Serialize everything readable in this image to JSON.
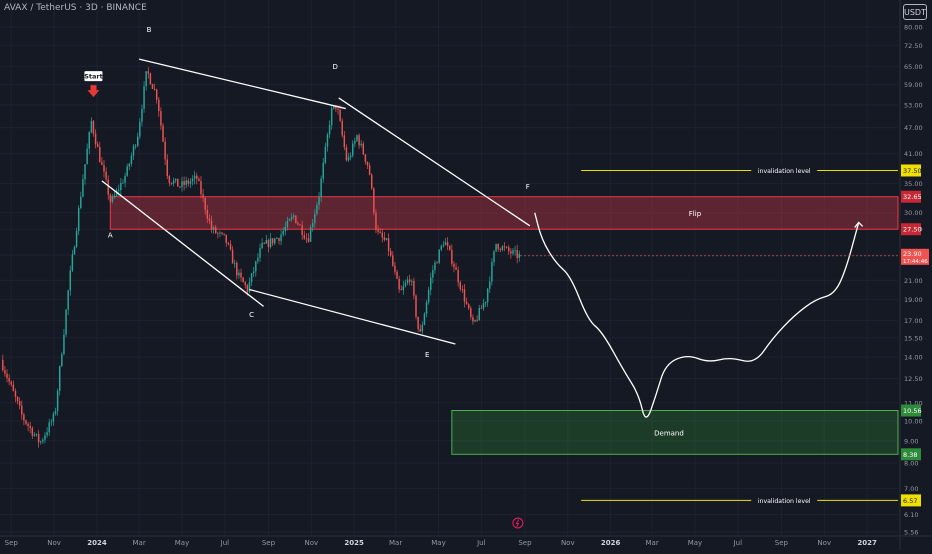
{
  "header": {
    "title": "AVAX / TetherUS · 3D · BINANCE",
    "currency": "USDT"
  },
  "colors": {
    "background": "#151924",
    "up": "#26a69a",
    "down": "#ef5350",
    "supply_zone": "#e5384b",
    "demand_zone": "#2e7d32",
    "invalidation": "#f0e000",
    "drawing": "#ffffff"
  },
  "chart_data": {
    "type": "candlestick",
    "y_scale": "log",
    "ylim": [
      5.56,
      87.5
    ],
    "x_tick_labels": [
      "Sep",
      "Nov",
      "2024",
      "Mar",
      "May",
      "Jul",
      "Sep",
      "Nov",
      "2025",
      "Mar",
      "May",
      "Jul",
      "Sep",
      "Nov",
      "2026",
      "Mar",
      "May",
      "Jul",
      "Sep",
      "Nov",
      "2027"
    ],
    "y_tick_labels": [
      "80.00",
      "72.50",
      "65.00",
      "59.00",
      "53.00",
      "47.00",
      "41.00",
      "35.00",
      "30.00",
      "27.50",
      "24.00",
      "21.00",
      "19.00",
      "17.00",
      "15.50",
      "14.00",
      "12.50",
      "11.00",
      "10.00",
      "9.00",
      "8.00",
      "7.00",
      "6.10",
      "5.56"
    ],
    "price_path": [
      [
        "2023-08-20",
        13.8
      ],
      [
        "2023-09-20",
        10.2
      ],
      [
        "2023-10-15",
        8.9
      ],
      [
        "2023-11-05",
        10.3
      ],
      [
        "2023-11-25",
        20.5
      ],
      [
        "2023-12-15",
        36.0
      ],
      [
        "2023-12-27",
        48.5
      ],
      [
        "2024-01-08",
        40.0
      ],
      [
        "2024-01-24",
        31.5
      ],
      [
        "2024-02-15",
        37.0
      ],
      [
        "2024-03-02",
        45.5
      ],
      [
        "2024-03-15",
        63.5
      ],
      [
        "2024-03-30",
        55.0
      ],
      [
        "2024-04-14",
        36.0
      ],
      [
        "2024-05-01",
        34.5
      ],
      [
        "2024-05-25",
        36.0
      ],
      [
        "2024-06-15",
        27.5
      ],
      [
        "2024-07-05",
        26.0
      ],
      [
        "2024-07-23",
        21.5
      ],
      [
        "2024-08-05",
        20.0
      ],
      [
        "2024-08-25",
        25.0
      ],
      [
        "2024-09-20",
        26.5
      ],
      [
        "2024-10-10",
        29.5
      ],
      [
        "2024-10-30",
        26.0
      ],
      [
        "2024-11-15",
        33.0
      ],
      [
        "2024-12-02",
        51.0
      ],
      [
        "2024-12-10",
        53.0
      ],
      [
        "2024-12-25",
        39.0
      ],
      [
        "2025-01-08",
        45.0
      ],
      [
        "2025-01-25",
        38.0
      ],
      [
        "2025-02-05",
        27.0
      ],
      [
        "2025-02-20",
        25.5
      ],
      [
        "2025-03-10",
        19.5
      ],
      [
        "2025-03-25",
        21.5
      ],
      [
        "2025-04-07",
        15.5
      ],
      [
        "2025-04-25",
        22.0
      ],
      [
        "2025-05-12",
        26.0
      ],
      [
        "2025-05-25",
        23.0
      ],
      [
        "2025-06-15",
        18.0
      ],
      [
        "2025-06-22",
        16.5
      ],
      [
        "2025-07-10",
        19.0
      ],
      [
        "2025-07-25",
        25.5
      ],
      [
        "2025-08-10",
        24.5
      ],
      [
        "2025-08-25",
        23.9
      ]
    ],
    "last_price": "23.90",
    "countdown": "17:44:46",
    "zones": [
      {
        "name": "supply",
        "label": "Flip",
        "low": 27.5,
        "high": 32.65,
        "low_label": "27.50",
        "high_label": "32.65"
      },
      {
        "name": "demand",
        "label": "Demand",
        "low": 8.38,
        "high": 10.56,
        "low_label": "8.38",
        "high_label": "10.56"
      }
    ],
    "invalidation_levels": [
      {
        "label": "invalidation level",
        "value": 37.5,
        "value_label": "37.50"
      },
      {
        "label": "invalidation level",
        "value": 6.57,
        "value_label": "6.57"
      }
    ],
    "wave_labels": [
      {
        "text": "A",
        "date": "2024-01-20",
        "price": 26.3
      },
      {
        "text": "B",
        "date": "2024-03-15",
        "price": 78.0
      },
      {
        "text": "C",
        "date": "2024-08-08",
        "price": 17.3
      },
      {
        "text": "D",
        "date": "2024-12-05",
        "price": 64.0
      },
      {
        "text": "E",
        "date": "2025-04-15",
        "price": 14.0
      },
      {
        "text": "F",
        "date": "2025-09-05",
        "price": 34.0
      }
    ],
    "start_label": "Start",
    "trendlines": [
      {
        "from": [
          "2024-03-01",
          67.5
        ],
        "to": [
          "2024-12-20",
          52.0
        ]
      },
      {
        "from": [
          "2024-12-10",
          55.0
        ],
        "to": [
          "2025-09-08",
          28.0
        ]
      },
      {
        "from": [
          "2024-01-08",
          35.5
        ],
        "to": [
          "2024-08-25",
          18.3
        ]
      },
      {
        "from": [
          "2024-08-05",
          20.0
        ],
        "to": [
          "2025-05-25",
          15.0
        ]
      }
    ],
    "projection_path": [
      [
        "2025-09-15",
        30.0
      ],
      [
        "2025-09-25",
        26.0
      ],
      [
        "2025-10-15",
        23.0
      ],
      [
        "2025-11-05",
        21.5
      ],
      [
        "2025-11-30",
        17.0
      ],
      [
        "2025-12-20",
        16.0
      ],
      [
        "2026-01-20",
        13.0
      ],
      [
        "2026-02-10",
        11.5
      ],
      [
        "2026-02-20",
        9.8
      ],
      [
        "2026-03-07",
        11.5
      ],
      [
        "2026-03-20",
        13.5
      ],
      [
        "2026-04-20",
        14.2
      ],
      [
        "2026-05-20",
        13.6
      ],
      [
        "2026-06-20",
        14.0
      ],
      [
        "2026-07-25",
        13.5
      ],
      [
        "2026-08-20",
        15.5
      ],
      [
        "2026-09-20",
        17.5
      ],
      [
        "2026-10-20",
        19.0
      ],
      [
        "2026-11-15",
        19.5
      ],
      [
        "2026-12-01",
        22.0
      ],
      [
        "2026-12-20",
        28.5
      ]
    ]
  }
}
